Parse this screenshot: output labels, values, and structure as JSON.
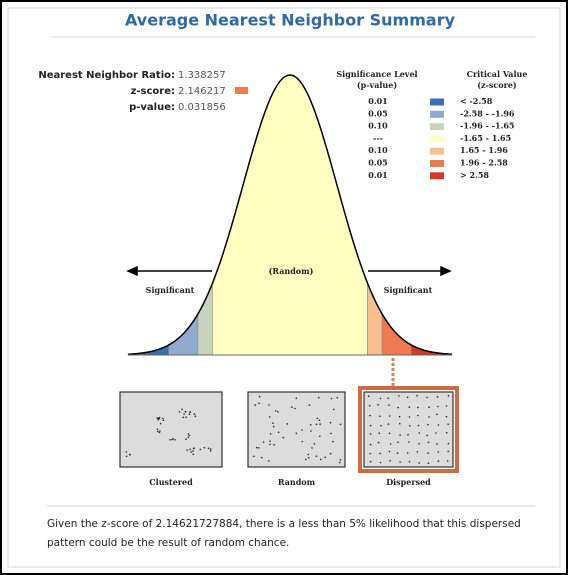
{
  "title": "Average Nearest Neighbor Summary",
  "stats": {
    "ratio": {
      "label": "Nearest Neighbor Ratio:",
      "value": "1.338257"
    },
    "z_score": {
      "label": "z-score:",
      "value": "2.146217"
    },
    "p_value": {
      "label": "p-value:",
      "value": "0.031856"
    }
  },
  "legend": {
    "significance_header": [
      "Significance Level",
      "(p-value)"
    ],
    "critical_header": [
      "Critical Value",
      "(z-score)"
    ],
    "rows": [
      {
        "p": "0.01",
        "z": "< -2.58"
      },
      {
        "p": "0.05",
        "z": "-2.58 - -1.96"
      },
      {
        "p": "0.10",
        "z": "-1.96 - -1.65"
      },
      {
        "p": "---",
        "z": "-1.65 - 1.65"
      },
      {
        "p": "0.10",
        "z": "1.65 - 1.96"
      },
      {
        "p": "0.05",
        "z": "1.96 - 2.58"
      },
      {
        "p": "0.01",
        "z": "> 2.58"
      }
    ]
  },
  "curve_labels": {
    "center": "(Random)",
    "left": "Significant",
    "right": "Significant"
  },
  "patterns": [
    "Clustered",
    "Random",
    "Dispersed"
  ],
  "footer": [
    "Given the z-score of 2.14621727884, there is a less than 5% likelihood that this dispersed",
    "pattern could be the result of random chance."
  ]
}
